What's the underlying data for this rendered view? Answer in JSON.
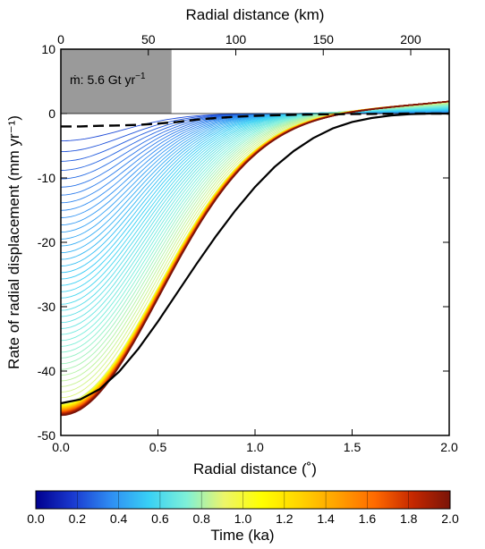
{
  "chart_data": {
    "type": "line",
    "title": "",
    "xlabel": "Radial distance (˚)",
    "x2label": "Radial distance (km)",
    "ylabel": "Rate of radial displacement (mm yr⁻¹)",
    "xlim": [
      0.0,
      2.0
    ],
    "x2lim": [
      0,
      222
    ],
    "ylim": [
      -50,
      10
    ],
    "x_ticks": [
      "0.0",
      "0.5",
      "1.0",
      "1.5",
      "2.0"
    ],
    "x2_ticks": [
      "0",
      "50",
      "100",
      "150",
      "200"
    ],
    "y_ticks": [
      "10",
      "0",
      "-10",
      "-20",
      "-30",
      "-40",
      "-50"
    ],
    "grid": false,
    "annotation": {
      "label": "ṁ: 5.6 Gt yr",
      "superscript": "−1",
      "box_x_range": [
        0.0,
        0.57
      ],
      "box_y_range": [
        0,
        10
      ],
      "box_color": "#9a9a9a"
    },
    "colorbar": {
      "label": "Time (ka)",
      "range": [
        0.0,
        2.0
      ],
      "ticks": [
        "0.0",
        "0.2",
        "0.4",
        "0.6",
        "0.8",
        "1.0",
        "1.2",
        "1.4",
        "1.6",
        "1.8",
        "2.0"
      ],
      "colors": [
        "#00008f",
        "#1a3ad0",
        "#2f8ef3",
        "#38d0f5",
        "#7ef0d8",
        "#ecf56a",
        "#ffff00",
        "#ffd400",
        "#ffa200",
        "#ff6a00",
        "#c52800",
        "#7a1408"
      ]
    },
    "families": {
      "time_span_ka": [
        0.0,
        2.0
      ],
      "early_curves": 40,
      "late_curves": 30,
      "color_scale": "time"
    },
    "series": [
      {
        "name": "",
        "style": "solid",
        "color": "#000000",
        "x": [
          0,
          0.1,
          0.2,
          0.3,
          0.4,
          0.5,
          0.6,
          0.7,
          0.8,
          0.9,
          1.0,
          1.1,
          1.2,
          1.3,
          1.4,
          1.5,
          1.6,
          1.7,
          1.8,
          1.9,
          2.0
        ],
        "values": [
          -45.0,
          -44.4,
          -42.8,
          -40.1,
          -36.5,
          -32.3,
          -27.8,
          -23.3,
          -19.0,
          -15.0,
          -11.4,
          -8.3,
          -5.8,
          -3.8,
          -2.3,
          -1.3,
          -0.7,
          -0.3,
          -0.1,
          0.0,
          0.0
        ]
      },
      {
        "name": "",
        "style": "dashed",
        "color": "#000000",
        "x": [
          0,
          0.1,
          0.2,
          0.3,
          0.4,
          0.5,
          0.6,
          0.7,
          0.8,
          0.9,
          1.0,
          1.2,
          1.4,
          1.6,
          1.8,
          2.0
        ],
        "values": [
          -2.0,
          -2.0,
          -1.9,
          -1.85,
          -1.75,
          -1.55,
          -1.3,
          -0.95,
          -0.7,
          -0.5,
          -0.35,
          -0.2,
          -0.1,
          -0.05,
          0.0,
          0.0
        ]
      }
    ]
  }
}
